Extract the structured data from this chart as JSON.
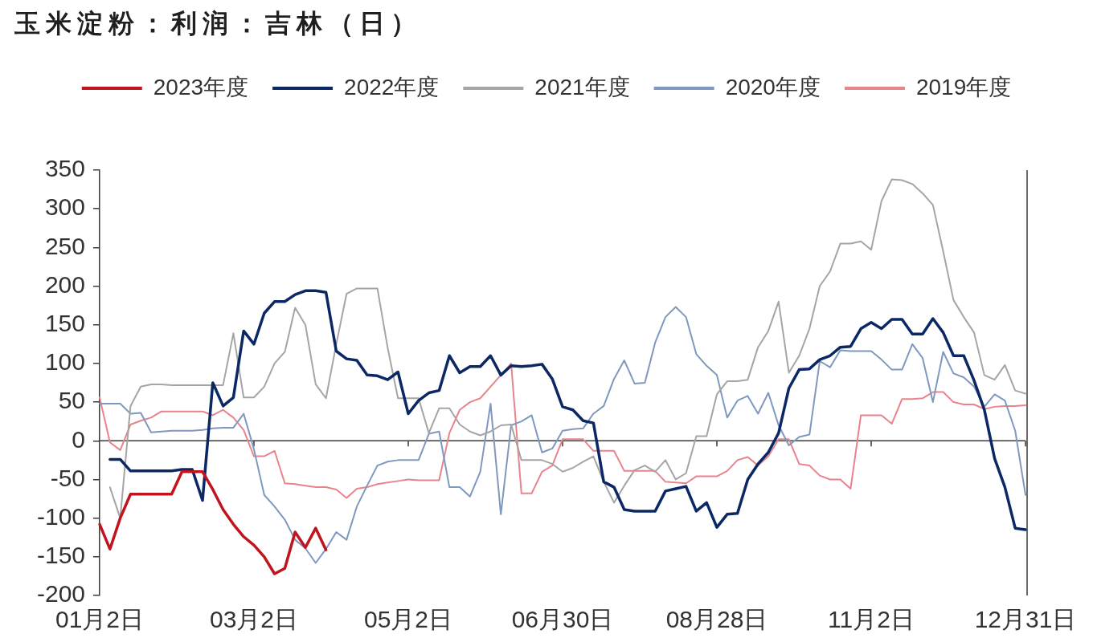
{
  "chart_data": {
    "type": "line",
    "title": "玉米淀粉：利润：吉林（日）",
    "categories": [
      "01月2日",
      null,
      null,
      null,
      null,
      null,
      null,
      null,
      null,
      null,
      null,
      null,
      null,
      null,
      null,
      "03月2日",
      null,
      null,
      null,
      null,
      null,
      null,
      null,
      null,
      null,
      null,
      null,
      null,
      null,
      null,
      "05月2日",
      null,
      null,
      null,
      null,
      null,
      null,
      null,
      null,
      null,
      null,
      null,
      null,
      null,
      null,
      "06月30日",
      null,
      null,
      null,
      null,
      null,
      null,
      null,
      null,
      null,
      null,
      null,
      null,
      null,
      null,
      "08月28日",
      null,
      null,
      null,
      null,
      null,
      null,
      null,
      null,
      null,
      null,
      null,
      null,
      null,
      null,
      "11月2日",
      null,
      null,
      null,
      null,
      null,
      null,
      null,
      null,
      null,
      null,
      null,
      null,
      null,
      null,
      "12月31日"
    ],
    "series": [
      {
        "name": "2023年度",
        "color": "#c0141e",
        "values": [
          -108,
          -140,
          -100,
          -69,
          -69,
          -69,
          -69,
          -69,
          -40,
          -40,
          -40,
          -63,
          -89,
          -108,
          -124,
          -135,
          -150,
          -172,
          -165,
          -118,
          -138,
          -113,
          -141,
          null,
          null,
          null,
          null,
          null,
          null,
          null,
          null,
          null,
          null,
          null,
          null,
          null,
          null,
          null,
          null,
          null,
          null,
          null,
          null,
          null,
          null,
          null,
          null,
          null,
          null,
          null,
          null,
          null,
          null,
          null,
          null,
          null,
          null,
          null,
          null,
          null,
          null,
          null,
          null,
          null,
          null,
          null,
          null,
          null,
          null,
          null,
          null,
          null,
          null,
          null,
          null,
          null,
          null,
          null,
          null,
          null,
          null,
          null,
          null,
          null,
          null,
          null,
          null,
          null,
          null,
          null,
          null
        ]
      },
      {
        "name": "2022年度",
        "color": "#0b2865",
        "values": [
          null,
          -24,
          -24,
          -39,
          -39,
          -39,
          -39,
          -39,
          -37,
          -37,
          -77,
          75,
          45,
          56,
          142,
          125,
          165,
          180,
          180,
          189,
          194,
          194,
          192,
          116,
          106,
          104,
          85,
          84,
          79,
          89,
          35,
          52,
          62,
          65,
          110,
          88,
          96,
          96,
          110,
          85,
          97,
          96,
          97,
          99,
          80,
          44,
          40,
          26,
          23,
          -53,
          -60,
          -89,
          -91,
          -91,
          -91,
          -65,
          -62,
          -59,
          -91,
          -80,
          -112,
          -95,
          -94,
          -50,
          -30,
          -15,
          10,
          68,
          92,
          93,
          105,
          110,
          121,
          122,
          145,
          153,
          145,
          157,
          157,
          138,
          138,
          158,
          140,
          110,
          110,
          78,
          40,
          -23,
          -60,
          -113,
          -115
        ]
      },
      {
        "name": "2021年度",
        "color": "#a5a5a5",
        "values": [
          null,
          -60,
          -100,
          45,
          70,
          73,
          73,
          72,
          72,
          72,
          72,
          72,
          72,
          139,
          56,
          56,
          70,
          100,
          115,
          172,
          150,
          73,
          55,
          125,
          190,
          197,
          197,
          197,
          120,
          55,
          55,
          55,
          10,
          42,
          42,
          21,
          12,
          7,
          12,
          20,
          21,
          -25,
          -25,
          -25,
          -30,
          -40,
          -35,
          -27,
          -20,
          -53,
          -80,
          -58,
          -38,
          -32,
          -40,
          -25,
          -50,
          -42,
          6,
          6,
          60,
          77,
          77,
          79,
          121,
          142,
          180,
          88,
          110,
          145,
          200,
          219,
          255,
          255,
          258,
          247,
          310,
          338,
          337,
          332,
          320,
          305,
          245,
          182,
          160,
          140,
          85,
          79,
          98,
          65,
          61
        ]
      },
      {
        "name": "2020年度",
        "color": "#7f98c0",
        "values": [
          48,
          48,
          48,
          35,
          36,
          11,
          12,
          13,
          13,
          13,
          14,
          16,
          17,
          17,
          35,
          -11,
          -70,
          -85,
          -102,
          -128,
          -139,
          -158,
          -140,
          -118,
          -128,
          -85,
          -58,
          -32,
          -27,
          -25,
          -25,
          -25,
          9,
          12,
          -60,
          -60,
          -72,
          -40,
          48,
          -95,
          20,
          25,
          33,
          -15,
          -10,
          13,
          15,
          16,
          35,
          45,
          80,
          104,
          74,
          75,
          127,
          160,
          173,
          160,
          112,
          97,
          85,
          30,
          52,
          58,
          35,
          62,
          20,
          -6,
          5,
          8,
          103,
          95,
          117,
          116,
          116,
          116,
          105,
          92,
          92,
          125,
          107,
          50,
          115,
          87,
          82,
          70,
          44,
          60,
          52,
          13,
          -70
        ]
      },
      {
        "name": "2019年度",
        "color": "#e8848c",
        "values": [
          56,
          -2,
          -12,
          21,
          26,
          30,
          38,
          38,
          38,
          38,
          38,
          33,
          40,
          30,
          14,
          -20,
          -20,
          -13,
          -55,
          -56,
          -58,
          -60,
          -60,
          -63,
          -74,
          -62,
          -60,
          -56,
          -54,
          -52,
          -50,
          -51,
          -51,
          -51,
          10,
          40,
          50,
          55,
          70,
          85,
          100,
          -68,
          -68,
          -40,
          -32,
          2,
          2,
          2,
          -13,
          -13,
          -13,
          -39,
          -39,
          -39,
          -39,
          -53,
          -54,
          -55,
          -46,
          -46,
          -46,
          -39,
          -25,
          -21,
          -32,
          -20,
          2,
          2,
          -30,
          -32,
          -45,
          -50,
          -50,
          -62,
          33,
          33,
          33,
          22,
          54,
          54,
          55,
          63,
          63,
          50,
          47,
          47,
          41,
          44,
          45,
          45,
          46
        ]
      }
    ],
    "ylim": [
      -200,
      350
    ],
    "yticks": [
      -200,
      -150,
      -100,
      -50,
      0,
      50,
      100,
      150,
      200,
      250,
      300,
      350
    ],
    "ref_lines": [
      {
        "axis": "y",
        "value": 0,
        "color": "#3a3a3a"
      }
    ],
    "grid": false,
    "legend": "top",
    "marker": "none",
    "line_style": "solid"
  }
}
